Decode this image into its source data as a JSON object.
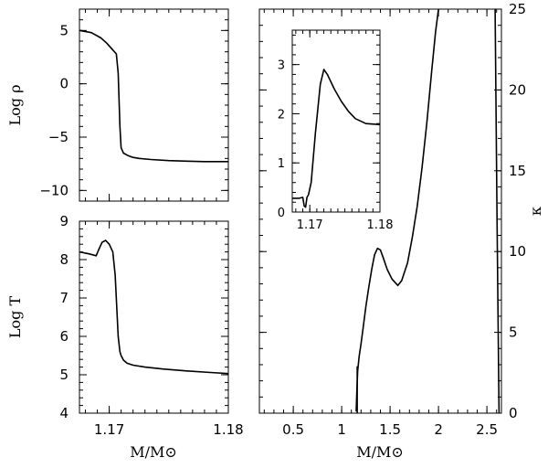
{
  "chart_data": [
    {
      "id": "rho",
      "type": "line",
      "xlabel": "",
      "ylabel": "Log ρ",
      "xlim": [
        1.1675,
        1.18
      ],
      "ylim": [
        -11,
        7
      ],
      "yticks": [
        5,
        0,
        -5,
        -10
      ],
      "ytick_labels": [
        "5",
        "0",
        "−5",
        "−10"
      ],
      "xticks": [
        1.17,
        1.18
      ],
      "series": [
        {
          "name": "log_rho",
          "x": [
            1.1675,
            1.1685,
            1.1693,
            1.1698,
            1.1702,
            1.1706,
            1.17075,
            1.1709,
            1.171,
            1.1712,
            1.1716,
            1.172,
            1.1725,
            1.1735,
            1.175,
            1.1765,
            1.178,
            1.18
          ],
          "y": [
            5.0,
            4.8,
            4.3,
            3.8,
            3.3,
            2.8,
            1.0,
            -4.0,
            -6.0,
            -6.5,
            -6.75,
            -6.9,
            -7.0,
            -7.1,
            -7.2,
            -7.25,
            -7.3,
            -7.3
          ]
        }
      ]
    },
    {
      "id": "temp",
      "type": "line",
      "xlabel": "M/M⊙",
      "ylabel": "Log T",
      "xlim": [
        1.1675,
        1.18
      ],
      "ylim": [
        4,
        9
      ],
      "yticks": [
        4,
        5,
        6,
        7,
        8,
        9
      ],
      "ytick_labels": [
        "4",
        "5",
        "6",
        "7",
        "8",
        "9"
      ],
      "xticks": [
        1.17,
        1.18
      ],
      "xtick_labels": [
        "1.17",
        "1.18"
      ],
      "series": [
        {
          "name": "log_T",
          "x": [
            1.1675,
            1.1683,
            1.1689,
            1.1691,
            1.1694,
            1.1697,
            1.17,
            1.1703,
            1.1705,
            1.17075,
            1.1709,
            1.171,
            1.1712,
            1.1715,
            1.172,
            1.173,
            1.1745,
            1.1765,
            1.1785,
            1.18
          ],
          "y": [
            8.2,
            8.15,
            8.1,
            8.25,
            8.45,
            8.5,
            8.4,
            8.2,
            7.6,
            6.0,
            5.6,
            5.5,
            5.38,
            5.3,
            5.25,
            5.2,
            5.15,
            5.1,
            5.06,
            5.03
          ]
        }
      ]
    },
    {
      "id": "kappa",
      "type": "line",
      "xlabel": "M/M⊙",
      "ylabel": "κ",
      "xlim": [
        0.15,
        2.65
      ],
      "ylim": [
        0,
        25
      ],
      "xticks": [
        0.5,
        1,
        1.5,
        2,
        2.5
      ],
      "xtick_labels": [
        "0.5",
        "1",
        "1.5",
        "2",
        "2.5"
      ],
      "yticks": [
        0,
        5,
        10,
        15,
        20,
        25
      ],
      "ytick_labels": [
        "0",
        "5",
        "10",
        "15",
        "20",
        "25"
      ],
      "series": [
        {
          "name": "kappa_main",
          "x": [
            1.15,
            1.155,
            1.165,
            1.18,
            1.2,
            1.22,
            1.25,
            1.28,
            1.31,
            1.34,
            1.37,
            1.4,
            1.43,
            1.47,
            1.52,
            1.58,
            1.62,
            1.68,
            1.73,
            1.78,
            1.83,
            1.88,
            1.93,
            1.97,
            2.0
          ],
          "y": [
            0.1,
            1.0,
            2.6,
            3.5,
            4.3,
            5.2,
            6.6,
            7.8,
            8.9,
            9.8,
            10.2,
            10.1,
            9.6,
            8.9,
            8.3,
            7.9,
            8.2,
            9.3,
            10.9,
            12.8,
            15.2,
            18.0,
            21.2,
            23.6,
            25.0
          ]
        },
        {
          "name": "kappa_spike",
          "x": [
            1.16,
            1.16
          ],
          "y": [
            0.0,
            2.9
          ]
        },
        {
          "name": "kappa_edge",
          "x": [
            2.585,
            2.605,
            2.625
          ],
          "y": [
            25.0,
            12.0,
            0.0
          ]
        }
      ]
    },
    {
      "id": "kappa_inset",
      "type": "line",
      "xlim": [
        1.1675,
        1.18
      ],
      "ylim": [
        0,
        3.7
      ],
      "xticks": [
        1.17,
        1.18
      ],
      "xtick_labels": [
        "1.17",
        "1.18"
      ],
      "yticks": [
        0,
        1,
        2,
        3
      ],
      "ytick_labels": [
        "0",
        "1",
        "2",
        "3"
      ],
      "series": [
        {
          "name": "kappa_zoom",
          "x": [
            1.1675,
            1.1685,
            1.169,
            1.1692,
            1.1694,
            1.1696,
            1.1698,
            1.1702,
            1.1708,
            1.1715,
            1.172,
            1.1725,
            1.1735,
            1.1745,
            1.1755,
            1.1765,
            1.178,
            1.18
          ],
          "y": [
            0.28,
            0.28,
            0.3,
            0.12,
            0.1,
            0.3,
            0.35,
            0.6,
            1.6,
            2.6,
            2.9,
            2.8,
            2.5,
            2.25,
            2.05,
            1.9,
            1.8,
            1.78
          ]
        }
      ]
    }
  ]
}
